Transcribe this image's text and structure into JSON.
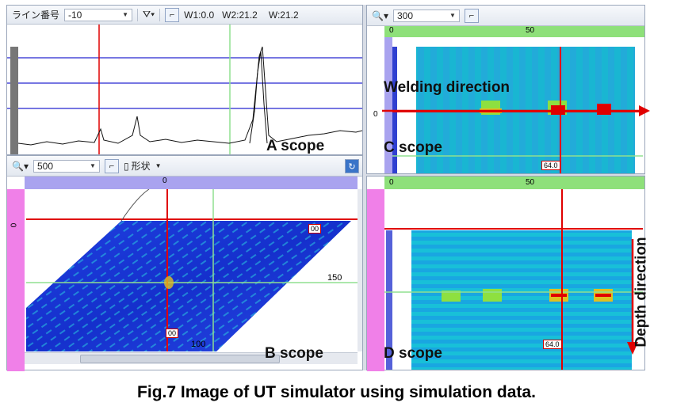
{
  "a_toolbar": {
    "line_label": "ライン番号",
    "line_value": "-10",
    "w1": "W1:0.0",
    "w2": "W2:21.2",
    "w": "W:21.2"
  },
  "b_toolbar": {
    "zoom_value": "500",
    "shape_label": "形状"
  },
  "c_toolbar": {
    "zoom_value": "300"
  },
  "c_ruler_tick": "50",
  "d_ruler_tick": "50",
  "b_ruler_zero": "0",
  "c_left_zero": "0",
  "b_left_zero": "0",
  "labels": {
    "a_scope": "A scope",
    "b_scope": "B scope",
    "c_scope": "C scope",
    "d_scope": "D scope",
    "welding_direction": "Welding direction",
    "depth_direction": "Depth direction"
  },
  "badges": {
    "b_top": "00",
    "b_mid": "150",
    "b_bottom_small": "00",
    "b_bottom": "100",
    "c_bottom": "64.0",
    "d_bottom": "64.0"
  },
  "caption": "Fig.7 Image of UT simulator using simulation data.",
  "colors": {
    "accent_red": "#e00000",
    "scan_blue": "#1830d8",
    "scan_cyan": "#19c9d6",
    "ruler_green": "#8ee07a",
    "ruler_purple": "#a9a3ef",
    "ruler_pink": "#f080e8"
  }
}
